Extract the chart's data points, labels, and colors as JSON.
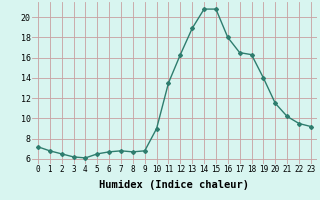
{
  "x": [
    0,
    1,
    2,
    3,
    4,
    5,
    6,
    7,
    8,
    9,
    10,
    11,
    12,
    13,
    14,
    15,
    16,
    17,
    18,
    19,
    20,
    21,
    22,
    23
  ],
  "y": [
    7.2,
    6.8,
    6.5,
    6.2,
    6.1,
    6.5,
    6.7,
    6.8,
    6.7,
    6.8,
    9.0,
    13.5,
    16.3,
    18.9,
    20.8,
    20.8,
    18.0,
    16.5,
    16.3,
    14.0,
    11.5,
    10.2,
    9.5,
    9.2
  ],
  "line_color": "#2e7d6e",
  "marker": "D",
  "marker_size": 2.0,
  "line_width": 1.0,
  "bg_color": "#d8f5f0",
  "grid_color": "#c8a0a0",
  "xlabel": "Humidex (Indice chaleur)",
  "xlabel_fontsize": 7.5,
  "xlabel_weight": "bold",
  "yticks": [
    6,
    8,
    10,
    12,
    14,
    16,
    18,
    20
  ],
  "xlim": [
    -0.5,
    23.5
  ],
  "ylim": [
    5.5,
    21.5
  ],
  "xtick_fontsize": 5.5,
  "ytick_fontsize": 6.0
}
